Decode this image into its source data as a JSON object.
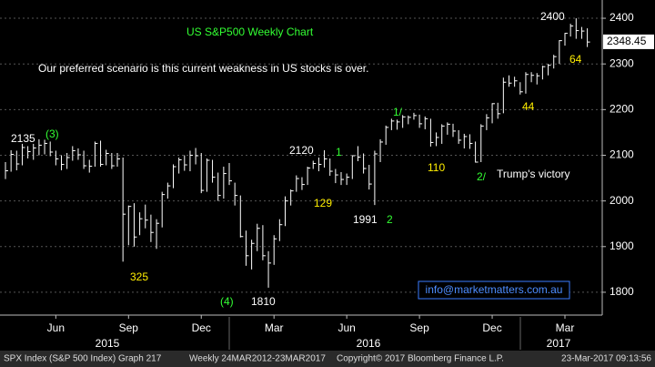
{
  "chart_data": {
    "type": "ohlc",
    "title": "US S&P500 Weekly Chart",
    "subtitle": "Our preferred scenario is this current weakness in US stocks is over.",
    "categories": [
      null,
      null,
      null,
      null,
      null,
      null,
      null,
      null,
      null,
      null,
      null,
      null,
      null,
      null,
      null,
      null,
      null,
      null,
      null,
      null,
      null,
      null,
      null,
      null,
      null,
      null,
      null,
      null,
      null,
      null,
      null,
      null,
      null,
      null,
      null,
      null,
      null,
      null,
      null,
      null,
      null,
      null,
      null,
      null,
      null,
      null,
      null,
      null,
      null,
      null,
      null,
      null,
      null,
      null,
      null,
      null,
      null,
      null,
      null,
      null,
      null,
      null,
      null,
      null,
      null,
      null,
      null,
      null,
      null,
      null,
      null,
      null,
      null,
      null,
      null,
      null,
      null,
      null,
      null,
      null,
      null,
      null,
      null,
      null,
      null,
      null,
      null,
      null,
      null,
      null,
      null,
      null,
      null,
      null,
      null,
      null,
      null,
      null,
      null,
      null,
      null,
      null,
      null,
      null,
      null
    ],
    "series": [
      {
        "name": "high",
        "color": "#ffffff",
        "values": [
          2085,
          2111,
          2110,
          2125,
          2120,
          2125,
          2135,
          2134,
          2130,
          2110,
          2100,
          2105,
          2120,
          2115,
          2110,
          2090,
          2130,
          2132,
          2112,
          2105,
          2105,
          2095,
          1990,
          1995,
          1975,
          1992,
          1970,
          1960,
          2020,
          2040,
          2080,
          2095,
          2100,
          2110,
          2116,
          2105,
          2093,
          2090,
          2062,
          2075,
          2083,
          2040,
          2012,
          1935,
          1915,
          1950,
          1947,
          1890,
          1925,
          1960,
          2010,
          2025,
          2056,
          2052,
          2075,
          2088,
          2095,
          2111,
          2093,
          2070,
          2063,
          2060,
          2100,
          2120,
          2104,
          2079,
          2110,
          2135,
          2165,
          2180,
          2178,
          2188,
          2187,
          2193,
          2189,
          2185,
          2180,
          2150,
          2168,
          2172,
          2169,
          2155,
          2147,
          2146,
          2130,
          2168,
          2190,
          2214,
          2215,
          2270,
          2275,
          2272,
          2260,
          2282,
          2282,
          2280,
          2296,
          2300,
          2320,
          2352,
          2368,
          2388,
          2400,
          2381,
          2378
        ]
      },
      {
        "name": "low",
        "color": "#ffffff",
        "values": [
          2048,
          2064,
          2067,
          2078,
          2093,
          2090,
          2100,
          2102,
          2098,
          2078,
          2067,
          2070,
          2088,
          2090,
          2070,
          2062,
          2075,
          2075,
          2078,
          2070,
          2075,
          1867,
          1903,
          1900,
          1925,
          1940,
          1910,
          1895,
          1942,
          2005,
          2028,
          2060,
          2066,
          2065,
          2080,
          2017,
          2020,
          2040,
          2000,
          2005,
          2035,
          1990,
          1920,
          1858,
          1850,
          1890,
          1870,
          1810,
          1860,
          1912,
          1945,
          1990,
          2020,
          2024,
          2035,
          2070,
          2065,
          2073,
          2055,
          2039,
          2035,
          2035,
          2048,
          2087,
          2060,
          2025,
          1991,
          2085,
          2123,
          2155,
          2156,
          2160,
          2168,
          2178,
          2160,
          2157,
          2119,
          2120,
          2125,
          2145,
          2140,
          2125,
          2115,
          2114,
          2084,
          2085,
          2155,
          2170,
          2180,
          2192,
          2250,
          2250,
          2233,
          2235,
          2260,
          2255,
          2266,
          2275,
          2290,
          2300,
          2340,
          2360,
          2355,
          2355,
          2337
        ]
      },
      {
        "name": "close",
        "color": "#ffffff",
        "values": [
          2066,
          2102,
          2081,
          2117,
          2108,
          2116,
          2122,
          2126,
          2107,
          2092,
          2080,
          2095,
          2110,
          2101,
          2077,
          2076,
          2126,
          2080,
          2104,
          2077,
          2092,
          1971,
          1988,
          1921,
          1961,
          1958,
          1931,
          1951,
          2014,
          2033,
          2075,
          2090,
          2079,
          2100,
          2099,
          2023,
          2089,
          2052,
          2012,
          2060,
          2044,
          2012,
          1922,
          1880,
          1907,
          1940,
          1880,
          1864,
          1917,
          1948,
          2000,
          2022,
          2049,
          2036,
          2072,
          2082,
          2080,
          2092,
          2065,
          2057,
          2047,
          2052,
          2099,
          2096,
          2071,
          2037,
          2103,
          2129,
          2161,
          2175,
          2173,
          2184,
          2183,
          2187,
          2169,
          2180,
          2128,
          2139,
          2164,
          2168,
          2153,
          2133,
          2141,
          2126,
          2085,
          2164,
          2182,
          2213,
          2191,
          2260,
          2258,
          2263,
          2239,
          2277,
          2275,
          2274,
          2294,
          2297,
          2316,
          2351,
          2367,
          2383,
          2373,
          2372,
          2348
        ]
      }
    ],
    "ylim": [
      1750,
      2440
    ],
    "yticks": [
      1800,
      1900,
      2000,
      2100,
      2200,
      2300,
      2400
    ],
    "xticks": [
      {
        "value": 9,
        "label": "Jun"
      },
      {
        "value": 22,
        "label": "Sep"
      },
      {
        "value": 35,
        "label": "Dec"
      },
      {
        "value": 48,
        "label": "Mar"
      },
      {
        "value": 61,
        "label": "Jun"
      },
      {
        "value": 74,
        "label": "Sep"
      },
      {
        "value": 87,
        "label": "Dec"
      },
      {
        "value": 100,
        "label": "Mar"
      }
    ],
    "years": [
      "2015",
      "2016",
      "2017"
    ],
    "grid": true,
    "last_price": 2348.45,
    "annotations": [
      "2135",
      "(3)",
      "325",
      "(4)",
      "1810",
      "2120",
      "1",
      "129",
      "1991",
      "2",
      "1/",
      "110",
      "2/",
      "Trump's victory",
      "44",
      "2400",
      "64"
    ],
    "contact": "info@marketmatters.com.au",
    "footer": [
      "SPX Index (S&P 500 Index) Graph 217",
      "Weekly 24MAR2012-23MAR2017",
      "Copyright© 2017 Bloomberg Finance L.P.",
      "23-Mar-2017 09:13:56"
    ]
  }
}
